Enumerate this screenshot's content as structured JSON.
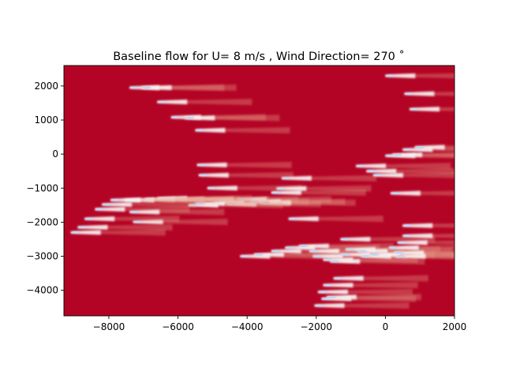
{
  "chart_data": {
    "type": "heatmap",
    "title": "Baseline flow for U= 8 m/s  ,  Wind Direction= 270  ˚",
    "xlabel": "",
    "ylabel": "",
    "xlim": [
      -9300,
      2000
    ],
    "ylim": [
      -4750,
      2600
    ],
    "xticks": [
      -8000,
      -6000,
      -4000,
      -2000,
      0,
      2000
    ],
    "xtick_labels": [
      "−8000",
      "−6000",
      "−4000",
      "−2000",
      "0",
      "2000"
    ],
    "yticks": [
      2000,
      1000,
      0,
      -1000,
      -2000,
      -3000,
      -4000
    ],
    "ytick_labels": [
      "2000",
      "1000",
      "0",
      "−1000",
      "−2000",
      "−3000",
      "−4000"
    ],
    "grid": false,
    "colormap": "coolwarm",
    "colors": {
      "freestream": "#b40426",
      "wake": "#f7f7f7",
      "wake_core": "#c0d4f5"
    },
    "wake_direction": "east",
    "turbines": [
      [
        -7400,
        1950
      ],
      [
        -7050,
        1950
      ],
      [
        -6600,
        1530
      ],
      [
        -6200,
        1080
      ],
      [
        -5800,
        1060
      ],
      [
        -5500,
        700
      ],
      [
        -5450,
        -320
      ],
      [
        -5400,
        -620
      ],
      [
        -5150,
        -1000
      ],
      [
        -5250,
        -1330
      ],
      [
        -4950,
        -1400
      ],
      [
        -4600,
        -1470
      ],
      [
        -4300,
        -1330
      ],
      [
        -3900,
        -1400
      ],
      [
        -3600,
        -1430
      ],
      [
        -5700,
        -1500
      ],
      [
        -5500,
        -1450
      ],
      [
        -6100,
        -1330
      ],
      [
        -6600,
        -1300
      ],
      [
        -6950,
        -1330
      ],
      [
        -7550,
        -1350
      ],
      [
        -7950,
        -1350
      ],
      [
        -8200,
        -1480
      ],
      [
        -8400,
        -1620
      ],
      [
        -7400,
        -1700
      ],
      [
        -7300,
        -1990
      ],
      [
        -8700,
        -1900
      ],
      [
        -8900,
        -2150
      ],
      [
        -9100,
        -2300
      ],
      [
        -3300,
        -1130
      ],
      [
        -3150,
        -1010
      ],
      [
        -3000,
        -710
      ],
      [
        -2800,
        -1900
      ],
      [
        -4200,
        -3000
      ],
      [
        -3800,
        -2950
      ],
      [
        -3300,
        -2850
      ],
      [
        -2900,
        -2750
      ],
      [
        -2500,
        -2700
      ],
      [
        -2200,
        -2850
      ],
      [
        -2100,
        -3000
      ],
      [
        -1800,
        -3100
      ],
      [
        -1600,
        -3150
      ],
      [
        -1300,
        -2500
      ],
      [
        -1300,
        -2950
      ],
      [
        -1150,
        -2800
      ],
      [
        -800,
        -2850
      ],
      [
        -700,
        -3000
      ],
      [
        -450,
        -2950
      ],
      [
        100,
        -2750
      ],
      [
        350,
        -2600
      ],
      [
        500,
        -2400
      ],
      [
        250,
        -2900
      ],
      [
        300,
        -3000
      ],
      [
        500,
        -2100
      ],
      [
        -1500,
        -3650
      ],
      [
        -1800,
        -3850
      ],
      [
        -1950,
        -4050
      ],
      [
        -1850,
        -4250
      ],
      [
        -2050,
        -4450
      ],
      [
        -1700,
        -4200
      ],
      [
        -850,
        -350
      ],
      [
        -550,
        -500
      ],
      [
        -350,
        -620
      ],
      [
        0,
        -50
      ],
      [
        200,
        -20
      ],
      [
        500,
        130
      ],
      [
        850,
        200
      ],
      [
        150,
        -1150
      ],
      [
        0,
        2300
      ],
      [
        550,
        1770
      ],
      [
        700,
        1320
      ]
    ]
  }
}
